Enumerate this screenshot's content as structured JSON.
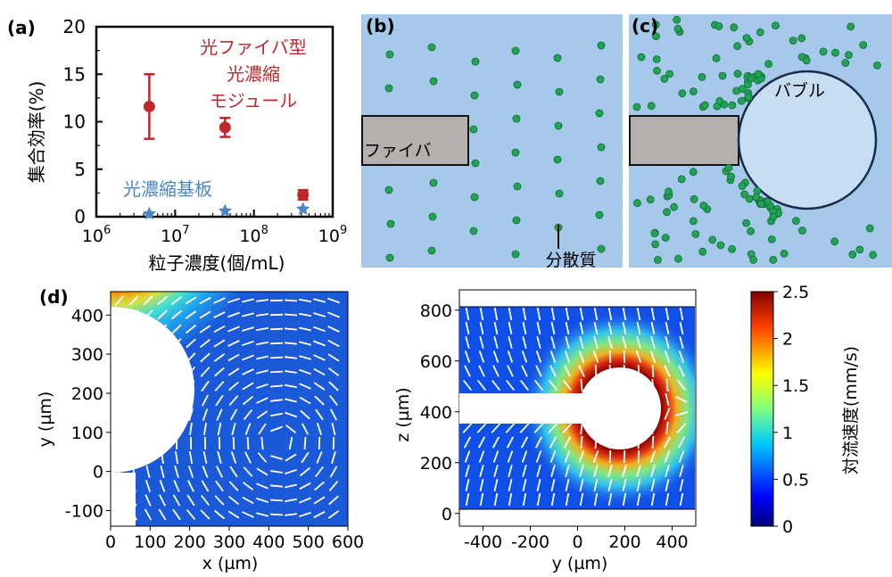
{
  "panel_labels": {
    "a": "(a)",
    "b": "(b)",
    "c": "(c)",
    "d": "(d)"
  },
  "chart_data": [
    {
      "type": "scatter",
      "panel": "a",
      "xscale": "log",
      "xlim": [
        1000000,
        1000000000
      ],
      "ylim": [
        0,
        20
      ],
      "xlabel": "粒子濃度(個/mL)",
      "ylabel": "集合効率(%)",
      "x_tick_base": "10",
      "x_tick_exponents": [
        "6",
        "7",
        "8",
        "9"
      ],
      "y_ticks": [
        "0",
        "5",
        "10",
        "15",
        "20"
      ],
      "series": [
        {
          "name": "光ファイバ型光濃縮モジュール",
          "name_lines": [
            "光ファイバ型",
            "光濃縮",
            "モジュール"
          ],
          "color": "#c0282d",
          "marker": "circle",
          "x": [
            4700000,
            43000000,
            420000000
          ],
          "y": [
            11.6,
            9.4,
            2.3
          ],
          "err": [
            3.4,
            1.0,
            0.5
          ]
        },
        {
          "name": "光濃縮基板",
          "color": "#4a86c2",
          "marker": "star",
          "x": [
            4700000,
            43000000,
            420000000
          ],
          "y": [
            0.3,
            0.6,
            0.8
          ]
        }
      ]
    },
    {
      "type": "heatmap",
      "panel": "d-left",
      "xlabel": "x (µm)",
      "ylabel": "y (µm)",
      "xlim": [
        0,
        600
      ],
      "ylim": [
        -140,
        460
      ],
      "x_ticks": [
        "0",
        "100",
        "200",
        "300",
        "400",
        "500",
        "600"
      ],
      "y_ticks": [
        "-100",
        "0",
        "100",
        "200",
        "300",
        "400"
      ]
    },
    {
      "type": "heatmap",
      "panel": "d-right",
      "xlabel": "y (µm)",
      "ylabel": "z (µm)",
      "xlim": [
        -500,
        500
      ],
      "ylim": [
        -50,
        880
      ],
      "x_ticks": [
        "-400",
        "-200",
        "0",
        "200",
        "400"
      ],
      "y_ticks": [
        "0",
        "200",
        "400",
        "600",
        "800"
      ]
    },
    {
      "type": "colorbar",
      "label": "対流速度(mm/s)",
      "range": [
        0,
        2.5
      ],
      "ticks": [
        "0",
        "0.5",
        "1",
        "1.5",
        "2",
        "2.5"
      ]
    }
  ],
  "schematic": {
    "fiber_label": "ファイバ",
    "dispersoid_label": "分散質",
    "bubble_label": "バブル"
  },
  "colors": {
    "water": "#a6c8ea",
    "fiber": "#b3b0ad",
    "particle": "#21a356",
    "bubble": "#c6ddf2",
    "red": "#c0282d",
    "blue": "#4a86c2"
  }
}
